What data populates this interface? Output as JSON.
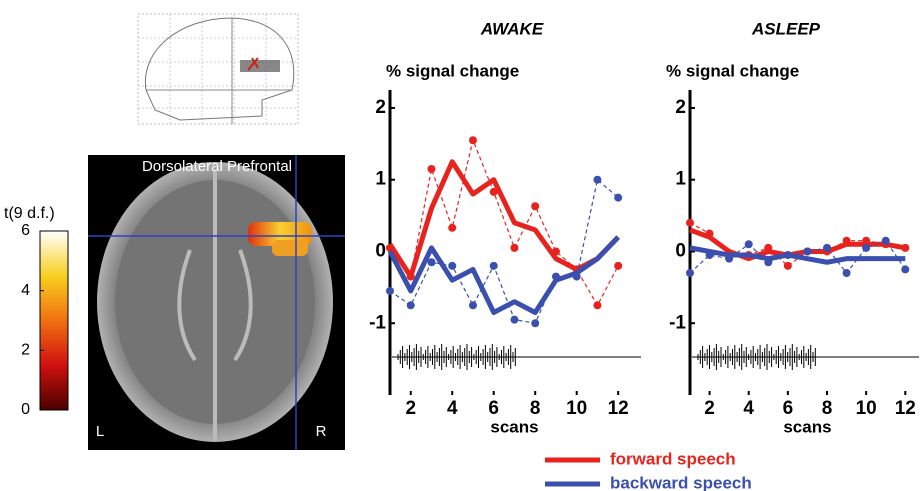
{
  "image": {
    "title": "Dorsolateral Prefrontal",
    "left": "L",
    "right": "R"
  },
  "chart_data": [
    {
      "type": "line",
      "title": "AWAKE",
      "ylabel": "% signal change",
      "xlabel": "scans",
      "x": [
        1,
        2,
        3,
        4,
        5,
        6,
        7,
        8,
        9,
        10,
        11,
        12
      ],
      "xlim": [
        1,
        13.1
      ],
      "xticks": [
        2,
        4,
        6,
        8,
        10,
        12
      ],
      "ylim": [
        -2,
        2.25
      ],
      "yticks": [
        -1,
        0,
        1,
        2
      ],
      "legend": "bottom",
      "series": [
        {
          "name": "forward speech",
          "color": "#e8231e",
          "values": [
            0.1,
            -0.35,
            0.6,
            1.25,
            0.8,
            1.0,
            0.4,
            0.3,
            -0.1,
            -0.25,
            -0.1,
            0.2
          ],
          "points": [
            0.05,
            -0.35,
            1.15,
            0.33,
            1.55,
            0.83,
            0.05,
            0.63,
            0.0,
            -0.25,
            -0.75,
            -0.2
          ]
        },
        {
          "name": "backward speech",
          "color": "#3a4fae",
          "values": [
            0.0,
            -0.55,
            0.05,
            -0.4,
            -0.25,
            -0.85,
            -0.7,
            -0.85,
            -0.4,
            -0.3,
            -0.1,
            0.2
          ],
          "points": [
            -0.55,
            -0.75,
            -0.15,
            -0.2,
            -0.75,
            -0.2,
            -0.95,
            -1.0,
            -0.35,
            -0.35,
            1.0,
            0.75
          ]
        }
      ]
    },
    {
      "type": "line",
      "title": "ASLEEP",
      "ylabel": "% signal change",
      "xlabel": "scans",
      "x": [
        1,
        2,
        3,
        4,
        5,
        6,
        7,
        8,
        9,
        10,
        11,
        12
      ],
      "xlim": [
        1,
        12.7
      ],
      "xticks": [
        2,
        4,
        6,
        8,
        10,
        12
      ],
      "ylim": [
        -2,
        2.25
      ],
      "yticks": [
        -1,
        0,
        1,
        2
      ],
      "series": [
        {
          "color": "#e8231e",
          "values": [
            0.3,
            0.2,
            0.0,
            -0.1,
            0.0,
            -0.05,
            0.0,
            0.0,
            0.1,
            0.1,
            0.1,
            0.05
          ],
          "points": [
            0.4,
            0.25,
            -0.05,
            -0.05,
            0.05,
            -0.2,
            0.0,
            0.0,
            0.15,
            0.15,
            0.1,
            0.05
          ]
        },
        {
          "color": "#3a4fae",
          "values": [
            0.05,
            0.0,
            -0.05,
            -0.05,
            -0.1,
            -0.05,
            -0.1,
            -0.15,
            -0.1,
            -0.1,
            -0.1,
            -0.1
          ],
          "points": [
            -0.3,
            -0.05,
            -0.1,
            0.1,
            -0.15,
            -0.05,
            0.0,
            0.05,
            -0.3,
            0.05,
            0.15,
            -0.25
          ]
        }
      ]
    },
    {
      "type": "colorbar",
      "title": "t(9 d.f.)",
      "ylim": [
        0,
        6
      ],
      "yticks": [
        0,
        2,
        4,
        6
      ],
      "colors": [
        "#4a0000",
        "#d01010",
        "#f07010",
        "#f8d020",
        "#ffffff"
      ]
    }
  ]
}
